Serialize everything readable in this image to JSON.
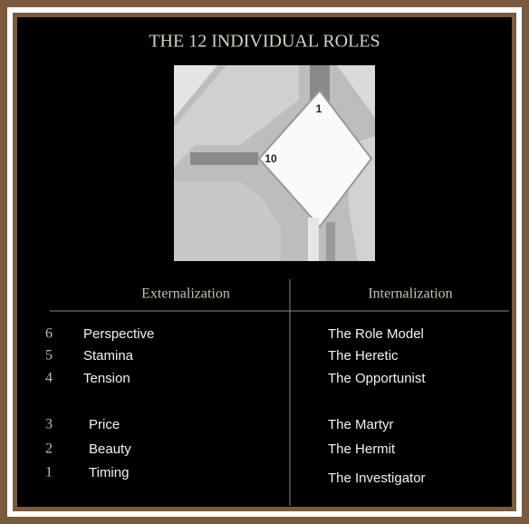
{
  "title": "THE 12 INDIVIDUAL ROLES",
  "diagram": {
    "labels": [
      "1",
      "10"
    ]
  },
  "table": {
    "headers": [
      "Externalization",
      "Internalization"
    ],
    "rows": [
      [
        "6",
        "Perspective",
        "The Role Model"
      ],
      [
        "5",
        "Stamina",
        "The Heretic"
      ],
      [
        "4",
        "Tension",
        "The Opportunist"
      ],
      [
        "3",
        "Price",
        "The Martyr"
      ],
      [
        "2",
        "Beauty",
        "The Hermit"
      ],
      [
        "1",
        "Timing",
        "The Investigator"
      ]
    ]
  }
}
